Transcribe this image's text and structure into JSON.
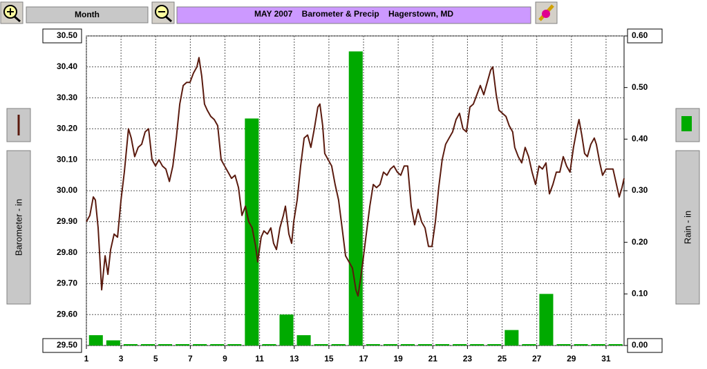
{
  "controls": {
    "period": "Month"
  },
  "chart_data": {
    "type": "combo",
    "title": "MAY 2007    Barometer & Precip    Hagerstown, MD",
    "ylabel": "Barometer - in",
    "y2label": "Rain - in",
    "xlim": [
      1,
      32.04
    ],
    "xticks": [
      1,
      3,
      5,
      7,
      9,
      11,
      13,
      15,
      17,
      19,
      21,
      23,
      25,
      27,
      29,
      31
    ],
    "ylim": [
      29.5,
      30.5
    ],
    "yticks": [
      {
        "value": 29.5,
        "label": "29.50"
      },
      {
        "value": 29.6,
        "label": "29.60"
      },
      {
        "value": 29.7,
        "label": "29.70"
      },
      {
        "value": 29.8,
        "label": "29.80"
      },
      {
        "value": 29.9,
        "label": "29.90"
      },
      {
        "value": 30.0,
        "label": "30.00"
      },
      {
        "value": 30.1,
        "label": "30.10"
      },
      {
        "value": 30.2,
        "label": "30.20"
      },
      {
        "value": 30.3,
        "label": "30.30"
      },
      {
        "value": 30.4,
        "label": "30.40"
      },
      {
        "value": 30.5,
        "label": "30.50"
      }
    ],
    "y2lim": [
      0,
      0.6
    ],
    "y2ticks": [
      {
        "value": 0,
        "label": "0.00"
      },
      {
        "value": 0.1,
        "label": "0.10"
      },
      {
        "value": 0.2,
        "label": "0.20"
      },
      {
        "value": 0.3,
        "label": "0.30"
      },
      {
        "value": 0.4,
        "label": "0.40"
      },
      {
        "value": 0.5,
        "label": "0.50"
      },
      {
        "value": 0.6,
        "label": "0.60"
      }
    ],
    "grid": true,
    "series": [
      {
        "type": "line",
        "color": "#5a1a0e",
        "x": [
          1.0,
          1.2,
          1.4,
          1.52,
          1.68,
          1.88,
          2.08,
          2.24,
          2.4,
          2.6,
          2.8,
          3.0,
          3.19,
          3.43,
          3.59,
          3.79,
          3.99,
          4.19,
          4.39,
          4.59,
          4.79,
          4.99,
          5.19,
          5.39,
          5.59,
          5.79,
          5.99,
          6.19,
          6.39,
          6.59,
          6.79,
          6.98,
          7.18,
          7.38,
          7.5,
          7.66,
          7.82,
          7.98,
          8.18,
          8.38,
          8.58,
          8.78,
          8.98,
          9.18,
          9.38,
          9.58,
          9.78,
          9.98,
          10.18,
          10.37,
          10.57,
          10.77,
          10.89,
          11.09,
          11.25,
          11.45,
          11.65,
          11.81,
          11.97,
          12.17,
          12.37,
          12.49,
          12.69,
          12.85,
          12.97,
          13.17,
          13.37,
          13.57,
          13.77,
          13.96,
          14.16,
          14.36,
          14.48,
          14.64,
          14.76,
          14.96,
          15.16,
          15.36,
          15.56,
          15.76,
          15.96,
          16.16,
          16.36,
          16.56,
          16.68,
          16.84,
          16.96,
          17.16,
          17.36,
          17.56,
          17.75,
          17.95,
          18.15,
          18.35,
          18.55,
          18.75,
          18.95,
          19.15,
          19.35,
          19.55,
          19.75,
          19.95,
          20.15,
          20.35,
          20.55,
          20.75,
          20.95,
          21.15,
          21.34,
          21.54,
          21.74,
          21.94,
          22.14,
          22.34,
          22.54,
          22.74,
          22.94,
          23.14,
          23.34,
          23.54,
          23.74,
          23.94,
          24.14,
          24.34,
          24.46,
          24.66,
          24.82,
          25.02,
          25.22,
          25.41,
          25.61,
          25.73,
          25.93,
          26.13,
          26.33,
          26.53,
          26.73,
          26.93,
          27.13,
          27.33,
          27.53,
          27.73,
          27.93,
          28.13,
          28.33,
          28.53,
          28.72,
          28.92,
          29.12,
          29.32,
          29.44,
          29.6,
          29.76,
          29.92,
          30.12,
          30.32,
          30.44,
          30.64,
          30.8,
          31.0,
          31.2,
          31.4,
          31.6,
          31.76,
          31.92,
          32.04
        ],
        "values": [
          29.9,
          29.92,
          29.98,
          29.97,
          29.88,
          29.68,
          29.79,
          29.73,
          29.81,
          29.86,
          29.85,
          29.97,
          30.06,
          30.2,
          30.17,
          30.11,
          30.14,
          30.15,
          30.19,
          30.2,
          30.1,
          30.08,
          30.1,
          30.08,
          30.07,
          30.03,
          30.08,
          30.17,
          30.28,
          30.34,
          30.35,
          30.35,
          30.38,
          30.4,
          30.43,
          30.37,
          30.28,
          30.26,
          30.24,
          30.23,
          30.21,
          30.1,
          30.08,
          30.06,
          30.04,
          30.05,
          30.01,
          29.92,
          29.95,
          29.9,
          29.88,
          29.82,
          29.77,
          29.85,
          29.87,
          29.86,
          29.88,
          29.83,
          29.81,
          29.88,
          29.92,
          29.95,
          29.86,
          29.83,
          29.9,
          29.97,
          30.08,
          30.17,
          30.18,
          30.14,
          30.2,
          30.27,
          30.28,
          30.21,
          30.12,
          30.1,
          30.08,
          30.02,
          29.97,
          29.88,
          29.79,
          29.77,
          29.75,
          29.68,
          29.66,
          29.72,
          29.77,
          29.86,
          29.95,
          30.02,
          30.01,
          30.02,
          30.06,
          30.05,
          30.07,
          30.08,
          30.06,
          30.05,
          30.08,
          30.08,
          29.95,
          29.89,
          29.94,
          29.9,
          29.88,
          29.82,
          29.82,
          29.9,
          30.01,
          30.1,
          30.15,
          30.17,
          30.19,
          30.23,
          30.25,
          30.2,
          30.19,
          30.27,
          30.28,
          30.31,
          30.34,
          30.31,
          30.35,
          30.39,
          30.4,
          30.31,
          30.26,
          30.25,
          30.24,
          30.21,
          30.19,
          30.14,
          30.11,
          30.09,
          30.14,
          30.11,
          30.06,
          30.02,
          30.08,
          30.07,
          30.09,
          29.99,
          30.02,
          30.06,
          30.06,
          30.11,
          30.08,
          30.06,
          30.14,
          30.2,
          30.23,
          30.18,
          30.12,
          30.11,
          30.15,
          30.17,
          30.15,
          30.09,
          30.05,
          30.07,
          30.07,
          30.07,
          30.02,
          29.98,
          30.01,
          30.04
        ]
      },
      {
        "type": "bar",
        "axis": "y2",
        "color": "#00aa00",
        "x": [
          1,
          2,
          3,
          4,
          5,
          6,
          7,
          8,
          9,
          10,
          11,
          12,
          13,
          14,
          15,
          16,
          17,
          18,
          19,
          20,
          21,
          22,
          23,
          24,
          25,
          26,
          27,
          28,
          29,
          30,
          31
        ],
        "values": [
          0.02,
          0.01,
          0,
          0,
          0,
          0,
          0,
          0,
          0,
          0.44,
          0,
          0.06,
          0.02,
          0,
          0,
          0.57,
          0,
          0,
          0,
          0,
          0,
          0,
          0,
          0,
          0.03,
          0,
          0.1,
          0,
          0,
          0,
          0
        ]
      }
    ]
  }
}
